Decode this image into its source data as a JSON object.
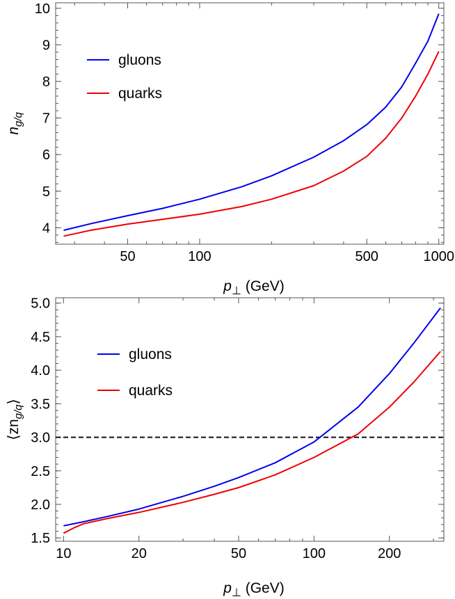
{
  "chart_data": [
    {
      "type": "line",
      "x_scale": "log",
      "xlim": [
        25,
        1050
      ],
      "ylim": [
        3.55,
        10.15
      ],
      "x_ticks": [
        50,
        100,
        500,
        1000
      ],
      "x_tick_labels": [
        "50",
        "100",
        "500",
        "1000"
      ],
      "y_ticks": [
        4,
        5,
        6,
        7,
        8,
        9,
        10
      ],
      "y_tick_labels": [
        "4",
        "5",
        "6",
        "7",
        "8",
        "9",
        "10"
      ],
      "xlabel_italic": "p",
      "xlabel_sub": "⊥",
      "xlabel_rest": " (GeV)",
      "ylabel_italic": "n",
      "ylabel_sub": "g/q",
      "ylabel_prefix": "",
      "ylabel_suffix": "",
      "legend_position": "top-left",
      "grid": false,
      "series": [
        {
          "name": "gluons",
          "color": "#0000ee",
          "x": [
            27,
            35,
            50,
            70,
            100,
            150,
            200,
            300,
            400,
            500,
            600,
            700,
            800,
            900,
            1000
          ],
          "y": [
            3.93,
            4.11,
            4.33,
            4.53,
            4.78,
            5.12,
            5.42,
            5.93,
            6.38,
            6.82,
            7.3,
            7.85,
            8.5,
            9.1,
            9.85
          ]
        },
        {
          "name": "quarks",
          "color": "#ee0000",
          "x": [
            27,
            35,
            50,
            70,
            100,
            150,
            200,
            300,
            400,
            500,
            600,
            700,
            800,
            900,
            1000
          ],
          "y": [
            3.77,
            3.93,
            4.1,
            4.23,
            4.37,
            4.58,
            4.78,
            5.15,
            5.55,
            5.95,
            6.45,
            7.0,
            7.6,
            8.2,
            8.82
          ]
        }
      ]
    },
    {
      "type": "line",
      "x_scale": "log",
      "xlim": [
        9.3,
        330
      ],
      "ylim": [
        1.45,
        5.08
      ],
      "x_ticks": [
        10,
        20,
        50,
        100,
        200
      ],
      "x_tick_labels": [
        "10",
        "20",
        "50",
        "100",
        "200"
      ],
      "y_ticks": [
        1.5,
        2.0,
        2.5,
        3.0,
        3.5,
        4.0,
        4.5,
        5.0
      ],
      "y_tick_labels": [
        "1.5",
        "2.0",
        "2.5",
        "3.0",
        "3.5",
        "4.0",
        "4.5",
        "5.0"
      ],
      "xlabel_italic": "p",
      "xlabel_sub": "⊥",
      "xlabel_rest": " (GeV)",
      "ylabel_prefix": "⟨zn",
      "ylabel_italic": "",
      "ylabel_sub": "g/q",
      "ylabel_suffix": "⟩",
      "legend_position": "top-left",
      "grid": false,
      "reference_line": {
        "y": 3.0,
        "style": "dashed",
        "color": "#000000"
      },
      "series": [
        {
          "name": "gluons",
          "color": "#0000ee",
          "x": [
            10,
            12,
            15,
            20,
            30,
            40,
            50,
            70,
            100,
            150,
            200,
            250,
            320
          ],
          "y": [
            1.68,
            1.74,
            1.82,
            1.93,
            2.12,
            2.27,
            2.4,
            2.62,
            2.93,
            3.45,
            3.95,
            4.4,
            4.93
          ]
        },
        {
          "name": "quarks",
          "color": "#ee0000",
          "x": [
            10,
            11,
            12,
            15,
            20,
            30,
            40,
            50,
            70,
            100,
            150,
            200,
            250,
            320
          ],
          "y": [
            1.57,
            1.65,
            1.71,
            1.79,
            1.88,
            2.03,
            2.15,
            2.25,
            2.44,
            2.7,
            3.05,
            3.45,
            3.82,
            4.28
          ]
        }
      ]
    }
  ]
}
